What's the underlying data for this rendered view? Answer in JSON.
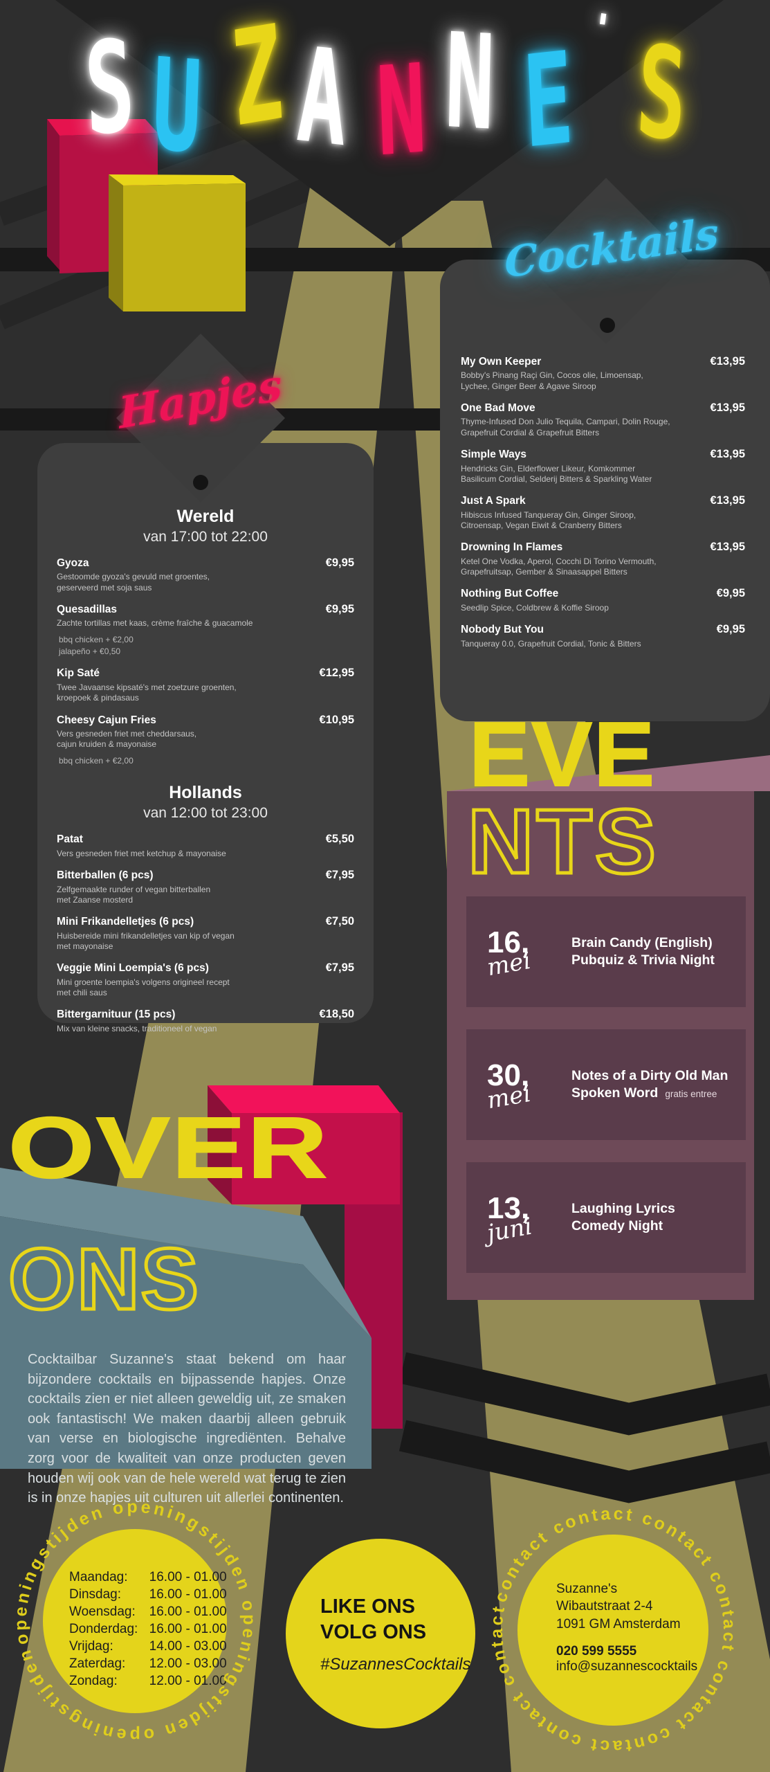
{
  "logo": {
    "text": "SUZANNE'S",
    "letters": [
      {
        "ch": "S",
        "color": "#FFFFFF"
      },
      {
        "ch": "U",
        "color": "#2BC3F2"
      },
      {
        "ch": "Z",
        "color": "#E8D619"
      },
      {
        "ch": "A",
        "color": "#FFFFFF"
      },
      {
        "ch": "N",
        "color": "#F0145A"
      },
      {
        "ch": "N",
        "color": "#FFFFFF"
      },
      {
        "ch": "E",
        "color": "#2BC3F2"
      },
      {
        "ch": "'",
        "color": "#FFFFFF"
      },
      {
        "ch": "S",
        "color": "#E8D619"
      }
    ]
  },
  "cocktails": {
    "sign": "Cocktails",
    "items": [
      {
        "name": "My Own Keeper",
        "desc": "Bobby's Pinang Raçi Gin, Cocos olie, Limoensap,\nLychee, Ginger Beer & Agave Siroop",
        "price": "€13,95"
      },
      {
        "name": "One Bad Move",
        "desc": "Thyme-Infused Don Julio Tequila, Campari, Dolin Rouge,\nGrapefruit Cordial & Grapefruit Bitters",
        "price": "€13,95"
      },
      {
        "name": "Simple Ways",
        "desc": "Hendricks Gin, Elderflower Likeur, Komkommer\nBasilicum Cordial, Selderij Bitters & Sparkling Water",
        "price": "€13,95"
      },
      {
        "name": "Just A Spark",
        "desc": "Hibiscus Infused Tanqueray Gin, Ginger Siroop,\nCitroensap, Vegan Eiwit & Cranberry Bitters",
        "price": "€13,95"
      },
      {
        "name": "Drowning In Flames",
        "desc": "Ketel One Vodka, Aperol, Cocchi Di Torino Vermouth,\nGrapefruitsap, Gember & Sinaasappel Bitters",
        "price": "€13,95"
      },
      {
        "name": "Nothing But Coffee",
        "desc": "Seedlip Spice, Coldbrew & Koffie Siroop",
        "price": "€9,95"
      },
      {
        "name": "Nobody But You",
        "desc": "Tanqueray 0.0, Grapefruit Cordial, Tonic & Bitters",
        "price": "€9,95"
      }
    ]
  },
  "hapjes": {
    "sign": "Hapjes",
    "wereld": {
      "title": "Wereld",
      "subtitle": "van 17:00 tot 22:00",
      "items": [
        {
          "name": "Gyoza",
          "desc": "Gestoomde gyoza's gevuld met groentes,\ngeserveerd met soja saus",
          "extras": "",
          "price": "€9,95"
        },
        {
          "name": "Quesadillas",
          "desc": "Zachte tortillas met kaas, crème fraîche & guacamole",
          "extras": "bbq chicken + €2,00\njalapeño + €0,50",
          "price": "€9,95"
        },
        {
          "name": "Kip Saté",
          "desc": "Twee Javaanse kipsaté's met zoetzure groenten,\nkroepoek & pindasaus",
          "extras": "",
          "price": "€12,95"
        },
        {
          "name": "Cheesy Cajun Fries",
          "desc": "Vers gesneden friet met cheddarsaus,\ncajun kruiden & mayonaise",
          "extras": "bbq chicken + €2,00",
          "price": "€10,95"
        }
      ]
    },
    "hollands": {
      "title": "Hollands",
      "subtitle": "van 12:00 tot 23:00",
      "items": [
        {
          "name": "Patat",
          "desc": "Vers gesneden friet met ketchup & mayonaise",
          "extras": "",
          "price": "€5,50"
        },
        {
          "name": "Bitterballen (6 pcs)",
          "desc": "Zelfgemaakte runder of vegan bitterballen\nmet Zaanse mosterd",
          "extras": "",
          "price": "€7,95"
        },
        {
          "name": "Mini Frikandelletjes (6 pcs)",
          "desc": "Huisbereide mini frikandelletjes van kip of vegan\nmet mayonaise",
          "extras": "",
          "price": "€7,50"
        },
        {
          "name": "Veggie Mini Loempia's (6 pcs)",
          "desc": "Mini groente loempia's volgens origineel recept\nmet chili saus",
          "extras": "",
          "price": "€7,95"
        },
        {
          "name": "Bittergarnituur (15 pcs)",
          "desc": "Mix van kleine snacks, traditioneel of vegan",
          "extras": "",
          "price": "€18,50"
        }
      ]
    }
  },
  "events": {
    "title_top": "EVE",
    "title_bottom": "NTS",
    "items": [
      {
        "day": "16,",
        "month": "mei",
        "line1": "Brain Candy (English)",
        "line2": "Pubquiz & Trivia Night",
        "note": ""
      },
      {
        "day": "30,",
        "month": "mei",
        "line1": "Notes of a Dirty Old Man",
        "line2": "Spoken Word",
        "note": "gratis entree"
      },
      {
        "day": "13,",
        "month": "juni",
        "line1": "Laughing Lyrics",
        "line2": "Comedy Night",
        "note": ""
      }
    ]
  },
  "about": {
    "title_top": "OVER",
    "title_bottom": "ONS",
    "body": "Cocktailbar Suzanne's staat bekend om haar bijzondere cocktails en bijpassende hapjes. Onze cocktails zien er niet alleen geweldig uit, ze smaken ook fantastisch! We maken daarbij alleen gebruik van verse en biologische ingrediënten. Behalve zorg voor de kwaliteit van onze producten geven houden wij ook van de hele wereld wat terug te zien is in onze hapjes uit culturen uit allerlei continenten."
  },
  "hours": {
    "ring_text": "openingstijden  openingstijden  openingstijden  openingstijden",
    "rows": [
      {
        "day": "Maandag:",
        "time": "16.00 - 01.00"
      },
      {
        "day": "Dinsdag:",
        "time": "16.00 - 01.00"
      },
      {
        "day": "Woensdag:",
        "time": "16.00 - 01.00"
      },
      {
        "day": "Donderdag:",
        "time": "16.00 - 01.00"
      },
      {
        "day": "Vrijdag:",
        "time": "14.00 - 03.00"
      },
      {
        "day": "Zaterdag:",
        "time": "12.00 - 03.00"
      },
      {
        "day": "Zondag:",
        "time": "12.00 - 01.00"
      }
    ]
  },
  "social": {
    "line1": "LIKE ONS",
    "line2": "VOLG ONS",
    "hashtag": "#SuzannesCocktails"
  },
  "contact": {
    "ring_text": "contact  contact  contact  contact  contact  contact  contact  contact",
    "name": "Suzanne's",
    "street": "Wibautstraat 2-4",
    "city": "1091 GM Amsterdam",
    "phone": "020 599 5555",
    "email": "info@suzannescocktails"
  },
  "colors": {
    "background": "#2E2E2E",
    "card": "#3E3E3E",
    "yellow": "#E8D619",
    "pink_neon": "#ED1456",
    "cyan_neon": "#3AC3F2",
    "crimson": "#C3104A",
    "olive_beam": "#948B55",
    "events_purple": "#6E4A58",
    "events_card": "#5A3C4B",
    "about_slate": "#5B7984"
  }
}
